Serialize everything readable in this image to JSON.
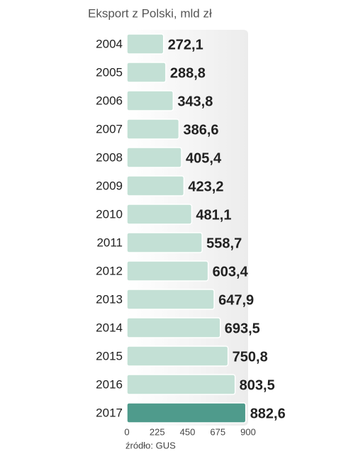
{
  "chart_data": {
    "type": "bar",
    "orientation": "horizontal",
    "title": "Eksport z Polski, mld zł",
    "categories": [
      "2004",
      "2005",
      "2006",
      "2007",
      "2008",
      "2009",
      "2010",
      "2011",
      "2012",
      "2013",
      "2014",
      "2015",
      "2016",
      "2017"
    ],
    "values": [
      272.1,
      288.8,
      343.8,
      386.6,
      405.4,
      423.2,
      481.1,
      558.7,
      603.4,
      647.9,
      693.5,
      750.8,
      803.5,
      882.6
    ],
    "value_labels": [
      "272,1",
      "288,8",
      "343,8",
      "386,6",
      "405,4",
      "423,2",
      "481,1",
      "558,7",
      "603,4",
      "647,9",
      "693,5",
      "750,8",
      "803,5",
      "882,6"
    ],
    "colors": [
      "#c3e0d5",
      "#c3e0d5",
      "#c3e0d5",
      "#c3e0d5",
      "#c3e0d5",
      "#c3e0d5",
      "#c3e0d5",
      "#c3e0d5",
      "#c3e0d5",
      "#c3e0d5",
      "#c3e0d5",
      "#c3e0d5",
      "#c3e0d5",
      "#4f9b8c"
    ],
    "xlim": [
      0,
      900
    ],
    "xticks": [
      0,
      225,
      450,
      675,
      900
    ],
    "source": "źródło: GUS"
  }
}
